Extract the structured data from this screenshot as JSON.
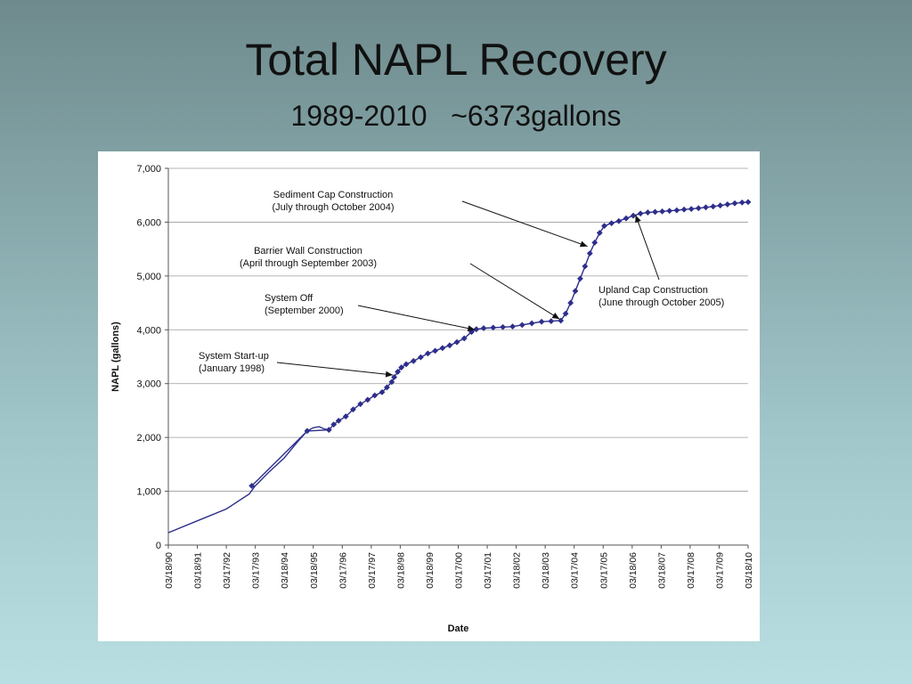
{
  "slide": {
    "title": "Total NAPL Recovery",
    "subtitle": "1989-2010   ~6373gallons"
  },
  "colors": {
    "series": "#2e2e8c",
    "grid": "#9c9c9c",
    "axis": "#555555",
    "background_top": "#6e8a8c",
    "background_bottom": "#b9dfe3"
  },
  "chart_data": {
    "type": "line",
    "title": "",
    "xlabel": "Date",
    "ylabel": "NAPL (gallons)",
    "ylim": [
      0,
      7000
    ],
    "yticks": [
      0,
      1000,
      2000,
      3000,
      4000,
      5000,
      6000,
      7000
    ],
    "ytick_labels": [
      "0",
      "1,000",
      "2,000",
      "3,000",
      "4,000",
      "5,000",
      "6,000",
      "7,000"
    ],
    "xlim": [
      "1990-03-18",
      "2010-03-18"
    ],
    "xtick_labels": [
      "03/18/90",
      "03/18/91",
      "03/17/92",
      "03/17/93",
      "03/18/94",
      "03/18/95",
      "03/17/96",
      "03/17/97",
      "03/18/98",
      "03/18/99",
      "03/17/00",
      "03/17/01",
      "03/18/02",
      "03/18/03",
      "03/17/04",
      "03/17/05",
      "03/18/06",
      "03/18/07",
      "03/17/08",
      "03/17/09",
      "03/18/10"
    ],
    "grid": "horizontal",
    "legend": "none",
    "series": [
      {
        "line": [
          [
            "1990-03-18",
            230
          ],
          [
            "1991-03-18",
            450
          ],
          [
            "1992-03-17",
            670
          ],
          [
            "1993-01-01",
            950
          ],
          [
            "1993-03-17",
            1100
          ],
          [
            "1993-09-01",
            1350
          ],
          [
            "1994-03-18",
            1620
          ],
          [
            "1994-09-01",
            1920
          ],
          [
            "1995-01-01",
            2120
          ],
          [
            "1995-03-18",
            2180
          ],
          [
            "1995-06-01",
            2200
          ],
          [
            "1995-08-01",
            2160
          ],
          [
            "1995-10-01",
            2140
          ]
        ],
        "markers": [
          [
            "1993-02-01",
            1100
          ],
          [
            "1995-01-01",
            2120
          ],
          [
            "1995-10-01",
            2140
          ],
          [
            "1995-12-01",
            2240
          ],
          [
            "1996-02-01",
            2310
          ],
          [
            "1996-05-01",
            2390
          ],
          [
            "1996-08-01",
            2520
          ],
          [
            "1996-11-01",
            2620
          ],
          [
            "1997-02-01",
            2700
          ],
          [
            "1997-05-01",
            2780
          ],
          [
            "1997-08-01",
            2840
          ],
          [
            "1997-10-01",
            2930
          ],
          [
            "1997-12-01",
            3030
          ],
          [
            "1998-01-01",
            3120
          ],
          [
            "1998-02-15",
            3220
          ],
          [
            "1998-04-01",
            3300
          ],
          [
            "1998-06-01",
            3360
          ],
          [
            "1998-09-01",
            3420
          ],
          [
            "1998-12-01",
            3490
          ],
          [
            "1999-03-01",
            3560
          ],
          [
            "1999-06-01",
            3610
          ],
          [
            "1999-09-01",
            3660
          ],
          [
            "1999-12-01",
            3710
          ],
          [
            "2000-03-01",
            3770
          ],
          [
            "2000-06-01",
            3840
          ],
          [
            "2000-09-01",
            3960
          ],
          [
            "2000-11-01",
            4010
          ],
          [
            "2001-02-01",
            4030
          ],
          [
            "2001-06-01",
            4040
          ],
          [
            "2001-10-01",
            4050
          ],
          [
            "2002-02-01",
            4060
          ],
          [
            "2002-06-01",
            4090
          ],
          [
            "2002-10-01",
            4120
          ],
          [
            "2003-02-01",
            4150
          ],
          [
            "2003-06-01",
            4160
          ],
          [
            "2003-10-01",
            4170
          ],
          [
            "2003-12-01",
            4300
          ],
          [
            "2004-02-01",
            4500
          ],
          [
            "2004-04-01",
            4720
          ],
          [
            "2004-06-01",
            4950
          ],
          [
            "2004-08-01",
            5180
          ],
          [
            "2004-10-01",
            5420
          ],
          [
            "2004-12-01",
            5620
          ],
          [
            "2005-02-01",
            5800
          ],
          [
            "2005-04-01",
            5930
          ],
          [
            "2005-07-01",
            5980
          ],
          [
            "2005-10-01",
            6020
          ],
          [
            "2006-01-01",
            6070
          ],
          [
            "2006-04-01",
            6120
          ],
          [
            "2006-07-01",
            6160
          ],
          [
            "2006-10-01",
            6180
          ],
          [
            "2007-01-01",
            6190
          ],
          [
            "2007-04-01",
            6200
          ],
          [
            "2007-07-01",
            6210
          ],
          [
            "2007-10-01",
            6220
          ],
          [
            "2008-01-01",
            6235
          ],
          [
            "2008-04-01",
            6245
          ],
          [
            "2008-07-01",
            6260
          ],
          [
            "2008-10-01",
            6275
          ],
          [
            "2009-01-01",
            6290
          ],
          [
            "2009-04-01",
            6310
          ],
          [
            "2009-07-01",
            6330
          ],
          [
            "2009-10-01",
            6350
          ],
          [
            "2010-01-01",
            6365
          ],
          [
            "2010-03-18",
            6373
          ]
        ]
      }
    ],
    "annotations": [
      {
        "lines": [
          "Sediment Cap Construction",
          "(July through October 2004)"
        ],
        "arrow_to": [
          "2004-09-01",
          5550
        ]
      },
      {
        "lines": [
          "Barrier Wall Construction",
          "(April through September 2003)"
        ],
        "arrow_to": [
          "2003-09-15",
          4200
        ]
      },
      {
        "lines": [
          "System Off",
          "(September 2000)"
        ],
        "arrow_to": [
          "2000-10-15",
          4000
        ]
      },
      {
        "lines": [
          "System Start-up",
          "(January 1998)"
        ],
        "arrow_to": [
          "1997-12-15",
          3160
        ]
      },
      {
        "lines": [
          "Upland Cap Construction",
          "(June through October 2005)"
        ],
        "arrow_to": [
          "2006-05-01",
          6130
        ]
      }
    ]
  }
}
